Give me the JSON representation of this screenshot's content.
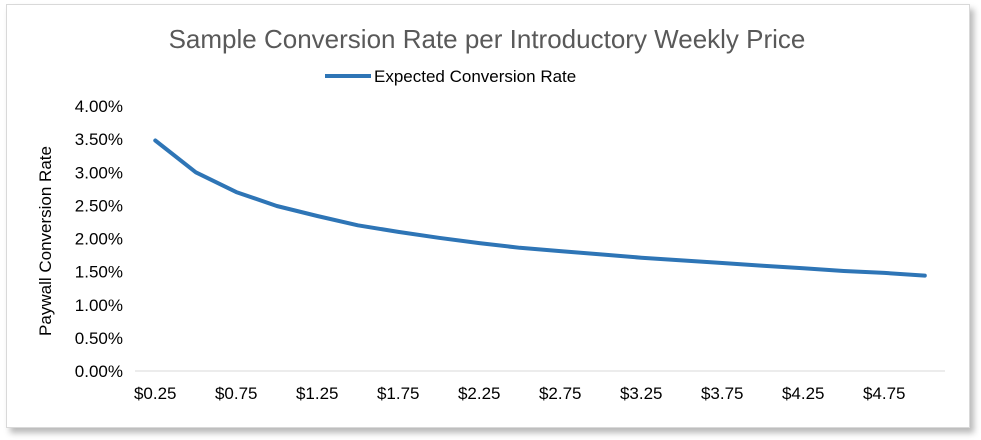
{
  "chart_data": {
    "type": "line",
    "title": "Sample Conversion Rate per Introductory Weekly Price",
    "xlabel": "",
    "ylabel": "Paywall Conversion Rate",
    "legend_position": "top-center",
    "grid": false,
    "ylim": [
      0,
      0.04
    ],
    "y_ticks": [
      "0.00%",
      "0.50%",
      "1.00%",
      "1.50%",
      "2.00%",
      "2.50%",
      "3.00%",
      "3.50%",
      "4.00%"
    ],
    "x_tick_labels": [
      "$0.25",
      "$0.75",
      "$1.25",
      "$1.75",
      "$2.25",
      "$2.75",
      "$3.25",
      "$3.75",
      "$4.25",
      "$4.75"
    ],
    "x": [
      0.25,
      0.5,
      0.75,
      1.0,
      1.25,
      1.5,
      1.75,
      2.0,
      2.25,
      2.5,
      2.75,
      3.0,
      3.25,
      3.5,
      3.75,
      4.0,
      4.25,
      4.5,
      4.75,
      5.0
    ],
    "series": [
      {
        "name": "Expected Conversion Rate",
        "color": "#2e75b6",
        "values": [
          0.0348,
          0.03,
          0.027,
          0.0249,
          0.0234,
          0.022,
          0.021,
          0.0201,
          0.0193,
          0.0186,
          0.0181,
          0.0176,
          0.0171,
          0.0167,
          0.0163,
          0.0159,
          0.0155,
          0.0151,
          0.0148,
          0.0144
        ]
      }
    ]
  }
}
